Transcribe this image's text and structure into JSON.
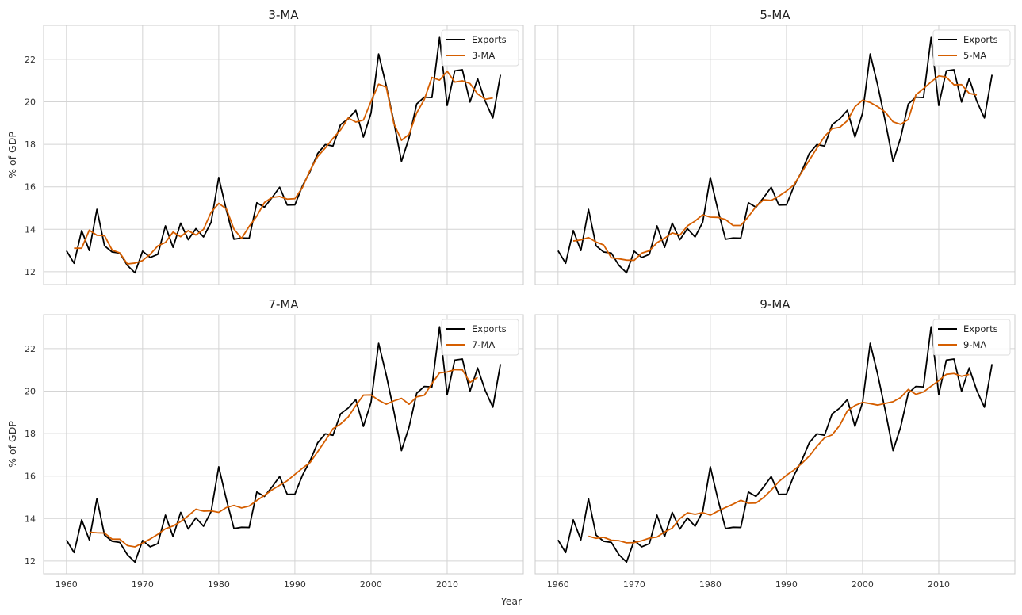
{
  "figure": {
    "xlabel": "Year",
    "ylabel": "% of GDP"
  },
  "chart_data": [
    {
      "type": "line",
      "title": "3-MA",
      "ylabel": "% of GDP",
      "xlim": [
        1957,
        2020
      ],
      "ylim": [
        11.4,
        23.6
      ],
      "xticks": [
        1960,
        1970,
        1980,
        1990,
        2000,
        2010
      ],
      "yticks": [
        12,
        14,
        16,
        18,
        20,
        22
      ],
      "grid": true,
      "legend": "top-right",
      "series": [
        {
          "name": "Exports",
          "color": "#000000",
          "x0": 1960,
          "values": [
            12.99,
            12.4,
            13.94,
            13.0,
            14.94,
            13.22,
            12.93,
            12.88,
            12.3,
            11.95,
            12.97,
            12.67,
            12.82,
            14.16,
            13.15,
            14.29,
            13.51,
            14.03,
            13.64,
            14.33,
            16.44,
            14.9,
            13.53,
            13.59,
            13.58,
            15.25,
            15.04,
            15.49,
            15.98,
            15.14,
            15.15,
            16.04,
            16.72,
            17.57,
            17.99,
            17.92,
            18.93,
            19.2,
            19.6,
            18.34,
            19.47,
            22.25,
            20.76,
            19.05,
            17.2,
            18.31,
            19.9,
            20.22,
            20.2,
            23.03,
            19.83,
            21.46,
            21.51,
            19.99,
            21.09,
            20.03,
            19.24,
            21.27
          ]
        },
        {
          "name": "3-MA",
          "color": "#d55e00",
          "x0": 1961,
          "values": [
            13.11,
            13.11,
            13.96,
            13.72,
            13.7,
            13.02,
            12.89,
            12.37,
            12.41,
            12.53,
            12.82,
            13.22,
            13.38,
            13.87,
            13.65,
            13.94,
            13.73,
            14.0,
            14.8,
            15.22,
            14.96,
            14.01,
            13.57,
            14.14,
            14.62,
            15.26,
            15.5,
            15.54,
            15.42,
            15.44,
            15.97,
            16.78,
            17.43,
            17.83,
            18.28,
            18.68,
            19.24,
            19.05,
            19.14,
            20.02,
            20.83,
            20.69,
            18.98,
            18.19,
            18.47,
            19.48,
            20.11,
            21.15,
            21.02,
            21.44,
            20.93,
            20.99,
            20.86,
            20.37,
            20.12,
            20.18
          ]
        }
      ]
    },
    {
      "type": "line",
      "title": "5-MA",
      "ylabel": "",
      "xlim": [
        1957,
        2020
      ],
      "ylim": [
        11.4,
        23.6
      ],
      "xticks": [
        1960,
        1970,
        1980,
        1990,
        2000,
        2010
      ],
      "yticks": [
        12,
        14,
        16,
        18,
        20,
        22
      ],
      "grid": true,
      "legend": "top-right",
      "series": [
        {
          "name": "Exports",
          "color": "#000000",
          "x0": 1960,
          "values": [
            12.99,
            12.4,
            13.94,
            13.0,
            14.94,
            13.22,
            12.93,
            12.88,
            12.3,
            11.95,
            12.97,
            12.67,
            12.82,
            14.16,
            13.15,
            14.29,
            13.51,
            14.03,
            13.64,
            14.33,
            16.44,
            14.9,
            13.53,
            13.59,
            13.58,
            15.25,
            15.04,
            15.49,
            15.98,
            15.14,
            15.15,
            16.04,
            16.72,
            17.57,
            17.99,
            17.92,
            18.93,
            19.2,
            19.6,
            18.34,
            19.47,
            22.25,
            20.76,
            19.05,
            17.2,
            18.31,
            19.9,
            20.22,
            20.2,
            23.03,
            19.83,
            21.46,
            21.51,
            19.99,
            21.09,
            20.03,
            19.24,
            21.27
          ]
        },
        {
          "name": "5-MA",
          "color": "#d55e00",
          "x0": 1962,
          "values": [
            13.45,
            13.5,
            13.61,
            13.4,
            13.26,
            12.66,
            12.61,
            12.55,
            12.54,
            12.88,
            12.99,
            13.37,
            13.58,
            13.83,
            13.72,
            14.16,
            14.39,
            14.68,
            14.57,
            14.56,
            14.46,
            14.18,
            14.18,
            14.59,
            15.07,
            15.39,
            15.36,
            15.56,
            15.8,
            16.1,
            16.68,
            17.25,
            17.82,
            18.37,
            18.74,
            18.8,
            19.11,
            19.77,
            20.08,
            19.97,
            19.77,
            19.51,
            19.06,
            18.94,
            19.17,
            20.33,
            20.62,
            20.94,
            21.22,
            21.16,
            20.8,
            20.81,
            20.4,
            20.32
          ]
        }
      ]
    },
    {
      "type": "line",
      "title": "7-MA",
      "ylabel": "% of GDP",
      "xlim": [
        1957,
        2020
      ],
      "ylim": [
        11.4,
        23.6
      ],
      "xticks": [
        1960,
        1970,
        1980,
        1990,
        2000,
        2010
      ],
      "yticks": [
        12,
        14,
        16,
        18,
        20,
        22
      ],
      "grid": true,
      "legend": "top-right",
      "series": [
        {
          "name": "Exports",
          "color": "#000000",
          "x0": 1960,
          "values": [
            12.99,
            12.4,
            13.94,
            13.0,
            14.94,
            13.22,
            12.93,
            12.88,
            12.3,
            11.95,
            12.97,
            12.67,
            12.82,
            14.16,
            13.15,
            14.29,
            13.51,
            14.03,
            13.64,
            14.33,
            16.44,
            14.9,
            13.53,
            13.59,
            13.58,
            15.25,
            15.04,
            15.49,
            15.98,
            15.14,
            15.15,
            16.04,
            16.72,
            17.57,
            17.99,
            17.92,
            18.93,
            19.2,
            19.6,
            18.34,
            19.47,
            22.25,
            20.76,
            19.05,
            17.2,
            18.31,
            19.9,
            20.22,
            20.2,
            23.03,
            19.83,
            21.46,
            21.51,
            19.99,
            21.09,
            20.03,
            19.24,
            21.27
          ]
        },
        {
          "name": "7-MA",
          "color": "#d55e00",
          "x0": 1963,
          "values": [
            13.36,
            13.33,
            13.32,
            13.03,
            13.03,
            12.73,
            12.67,
            12.85,
            13.04,
            13.26,
            13.52,
            13.65,
            13.86,
            14.13,
            14.44,
            14.35,
            14.36,
            14.29,
            14.52,
            14.62,
            14.5,
            14.59,
            14.85,
            15.09,
            15.35,
            15.57,
            15.78,
            16.08,
            16.37,
            16.64,
            17.15,
            17.67,
            18.23,
            18.45,
            18.78,
            19.32,
            19.81,
            19.82,
            19.57,
            19.38,
            19.54,
            19.66,
            19.38,
            19.73,
            19.81,
            20.35,
            20.86,
            20.9,
            21.01,
            21.0,
            20.41,
            20.65
          ]
        }
      ]
    },
    {
      "type": "line",
      "title": "9-MA",
      "ylabel": "",
      "xlim": [
        1957,
        2020
      ],
      "ylim": [
        11.4,
        23.6
      ],
      "xticks": [
        1960,
        1970,
        1980,
        1990,
        2000,
        2010
      ],
      "yticks": [
        12,
        14,
        16,
        18,
        20,
        22
      ],
      "grid": true,
      "legend": "top-right",
      "series": [
        {
          "name": "Exports",
          "color": "#000000",
          "x0": 1960,
          "values": [
            12.99,
            12.4,
            13.94,
            13.0,
            14.94,
            13.22,
            12.93,
            12.88,
            12.3,
            11.95,
            12.97,
            12.67,
            12.82,
            14.16,
            13.15,
            14.29,
            13.51,
            14.03,
            13.64,
            14.33,
            16.44,
            14.9,
            13.53,
            13.59,
            13.58,
            15.25,
            15.04,
            15.49,
            15.98,
            15.14,
            15.15,
            16.04,
            16.72,
            17.57,
            17.99,
            17.92,
            18.93,
            19.2,
            19.6,
            18.34,
            19.47,
            22.25,
            20.76,
            19.05,
            17.2,
            18.31,
            19.9,
            20.22,
            20.2,
            23.03,
            19.83,
            21.46,
            21.51,
            19.99,
            21.09,
            20.03,
            19.24,
            21.27
          ]
        },
        {
          "name": "9-MA",
          "color": "#d55e00",
          "x0": 1964,
          "values": [
            13.17,
            13.07,
            13.12,
            12.98,
            12.96,
            12.86,
            12.87,
            12.96,
            13.08,
            13.13,
            13.37,
            13.55,
            14.0,
            14.27,
            14.2,
            14.28,
            14.16,
            14.35,
            14.52,
            14.68,
            14.86,
            14.72,
            14.73,
            14.99,
            15.34,
            15.74,
            16.04,
            16.29,
            16.59,
            16.94,
            17.4,
            17.8,
            17.94,
            18.39,
            19.07,
            19.32,
            19.47,
            19.41,
            19.34,
            19.42,
            19.5,
            19.7,
            20.08,
            19.85,
            19.96,
            20.23,
            20.49,
            20.79,
            20.83,
            20.7,
            20.79
          ]
        }
      ]
    }
  ]
}
